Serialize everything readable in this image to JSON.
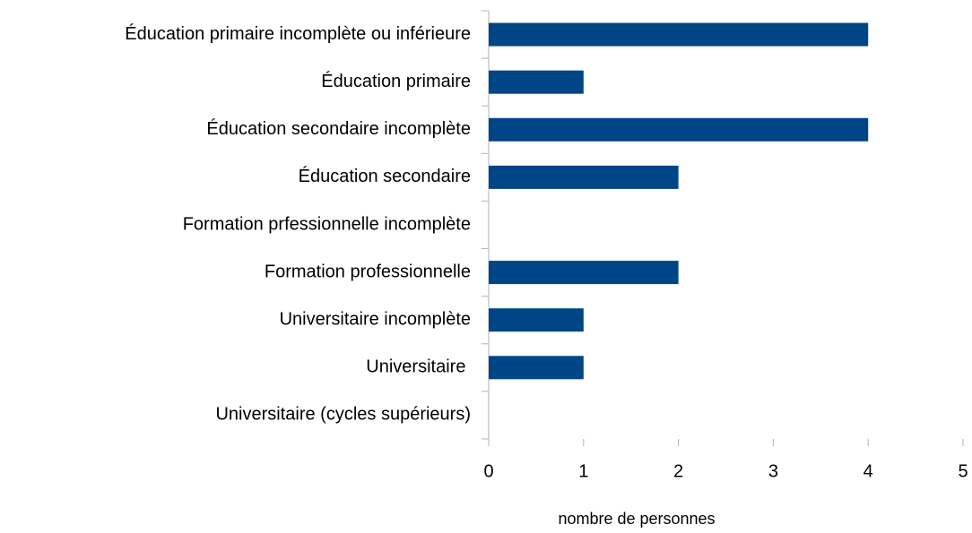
{
  "chart_data": {
    "type": "bar",
    "orientation": "horizontal",
    "categories": [
      "Éducation primaire incomplète ou inférieure",
      "Éducation primaire",
      "Éducation secondaire incomplète",
      "Éducation secondaire",
      "Formation prfessionnelle incomplète",
      "Formation professionnelle",
      "Universitaire incomplète",
      "Universitaire ",
      "Universitaire (cycles supérieurs)"
    ],
    "values": [
      4,
      1,
      4,
      2,
      0,
      2,
      1,
      1,
      0
    ],
    "color": "#004586",
    "xlabel": "nombre de personnes",
    "xlim": [
      0,
      5
    ],
    "xticks": [
      0,
      1,
      2,
      3,
      4,
      5
    ],
    "grid": false
  }
}
